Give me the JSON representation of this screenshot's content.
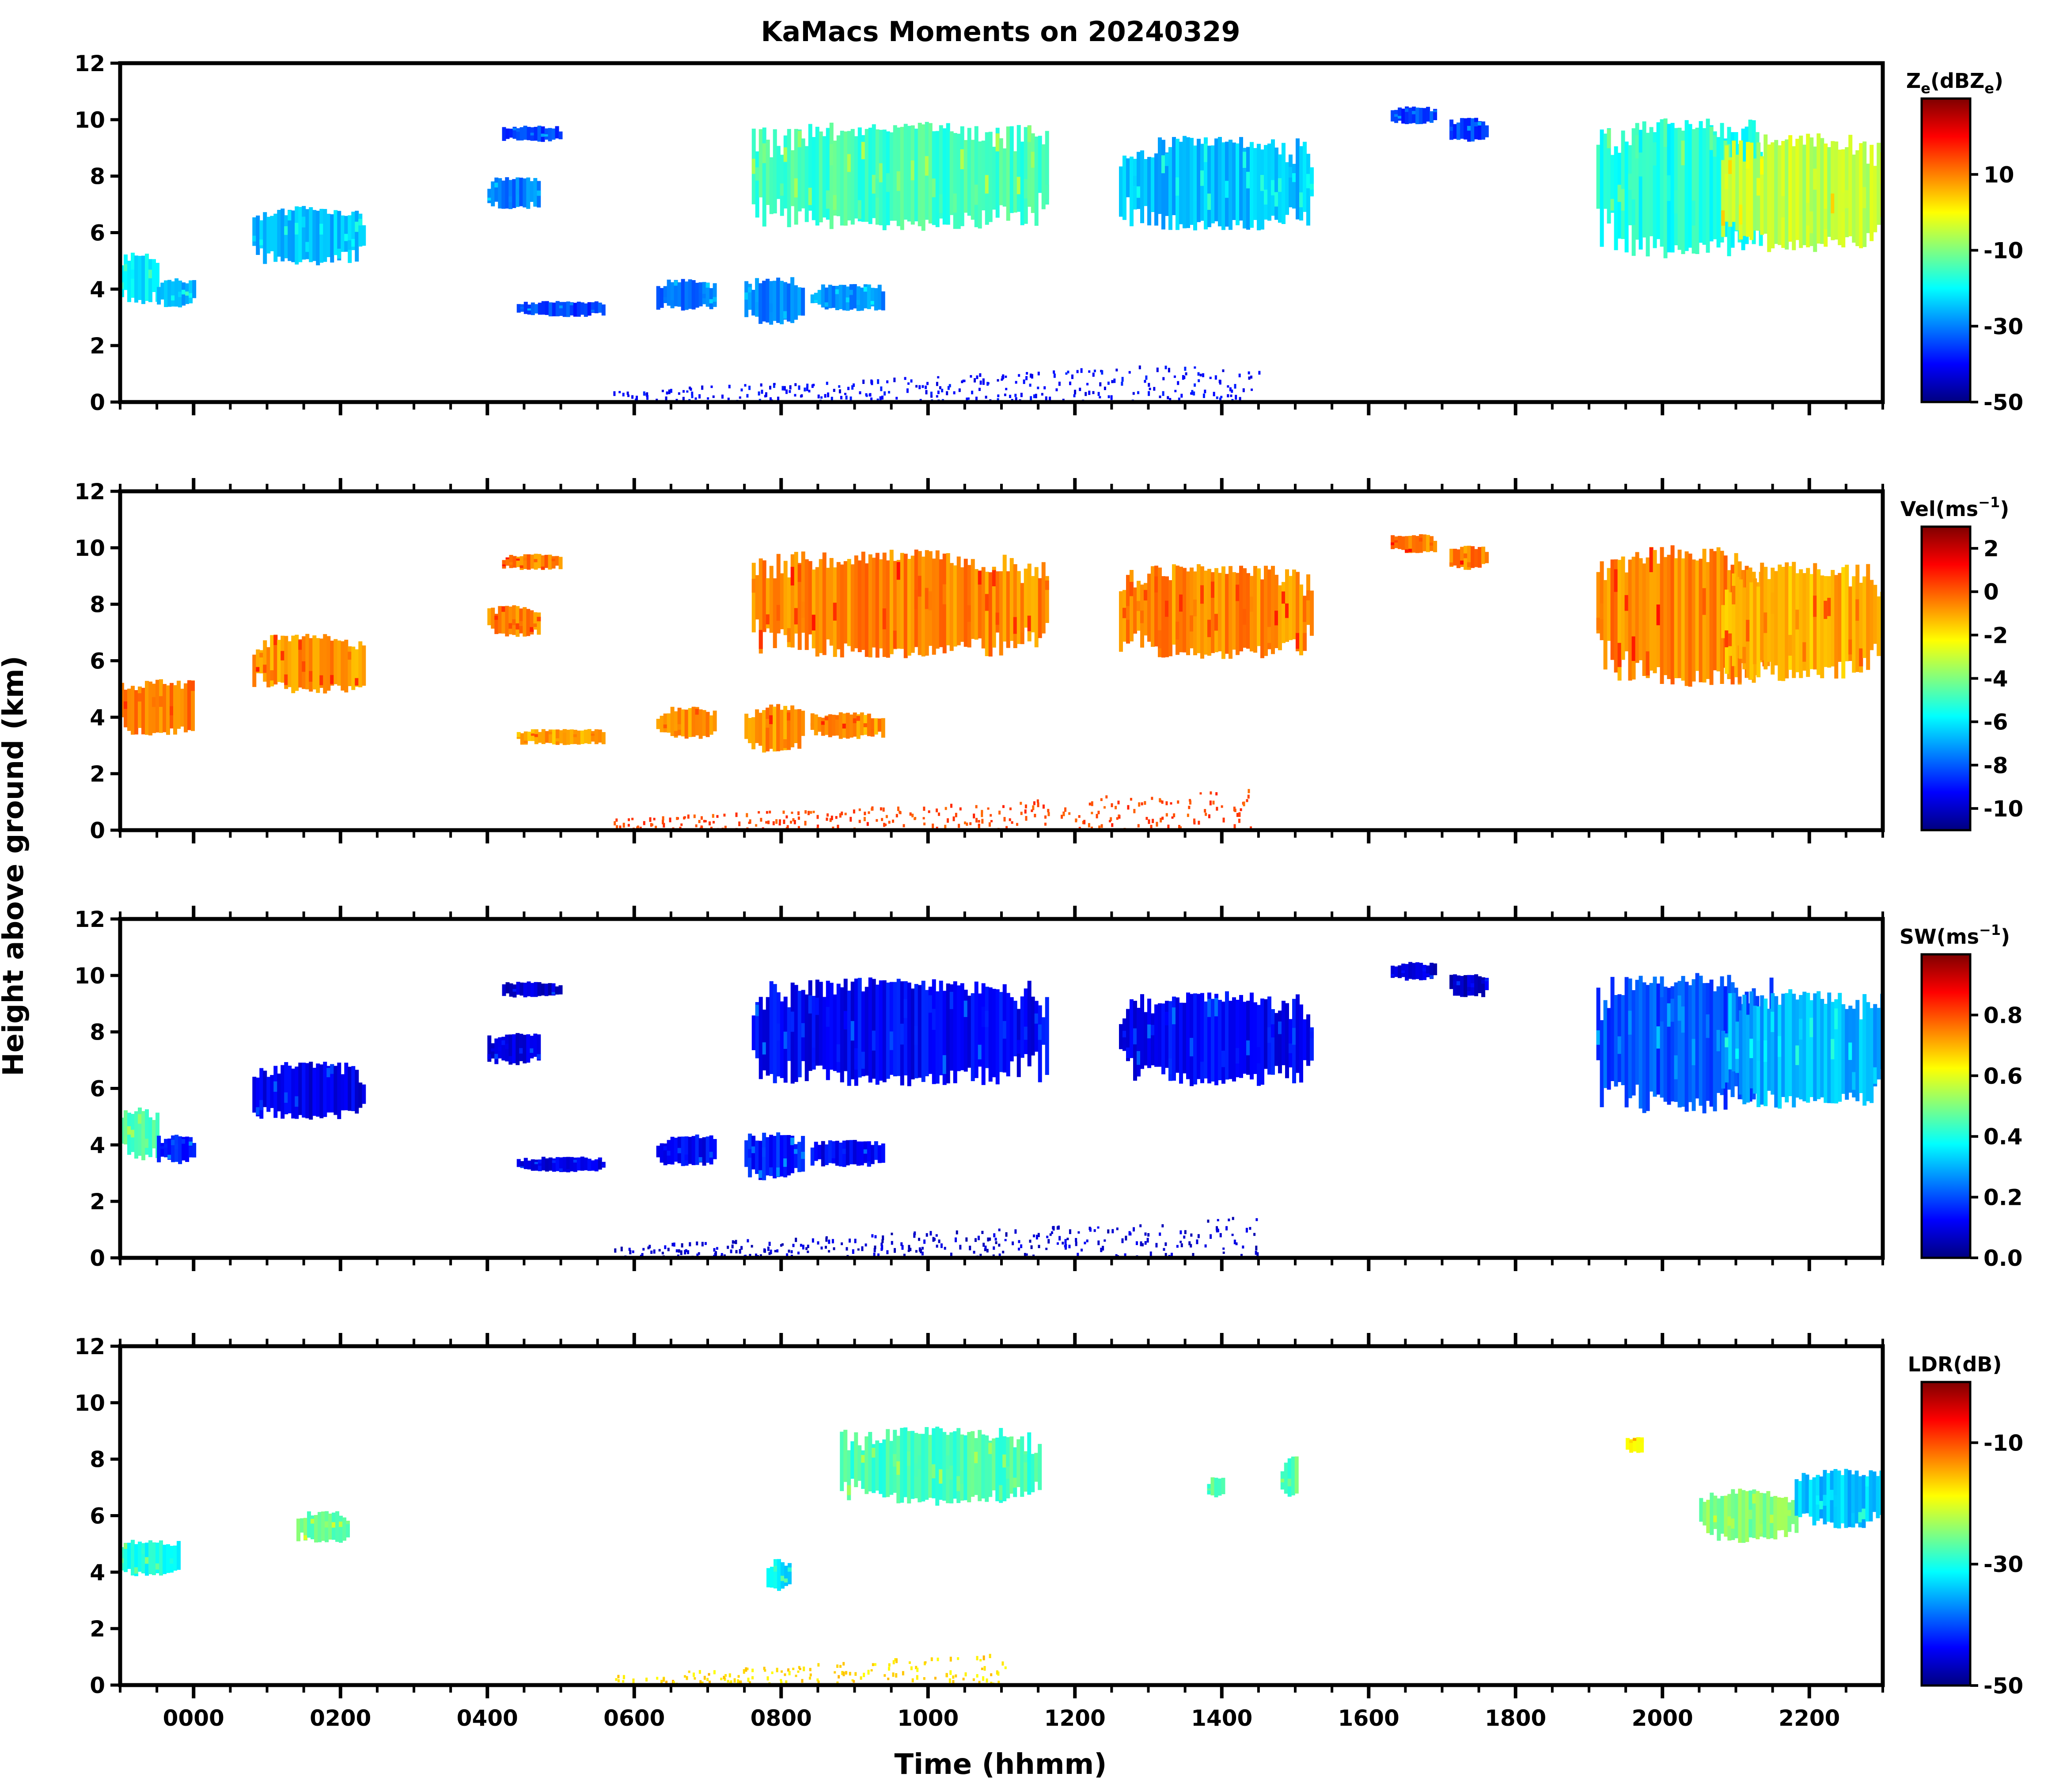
{
  "chart_data": {
    "type": "heatmap",
    "title": "KaMacs Moments on 20240329",
    "xlabel": "Time (hhmm)",
    "ylabel": "Height above ground (km)",
    "x_unit": "hours since 0000 UTC",
    "xlim": [
      -1.0,
      23.0
    ],
    "ylim": [
      0,
      12
    ],
    "x_ticks": [
      0,
      2,
      4,
      6,
      8,
      10,
      12,
      14,
      16,
      18,
      20,
      22
    ],
    "x_tick_labels": [
      "0000",
      "0200",
      "0400",
      "0600",
      "0800",
      "1000",
      "1200",
      "1400",
      "1600",
      "1800",
      "2000",
      "2200"
    ],
    "y_ticks": [
      0,
      2,
      4,
      6,
      8,
      10,
      12
    ],
    "y_tick_labels": [
      "0",
      "2",
      "4",
      "6",
      "8",
      "10",
      "12"
    ],
    "colormap": "jet",
    "colormap_stops": [
      "#00007f",
      "#0000ff",
      "#0080ff",
      "#00ffff",
      "#80ff80",
      "#ffff00",
      "#ff8000",
      "#ff0000",
      "#7f0000"
    ],
    "panels": [
      {
        "id": "ze",
        "colorbar_label_main": "Z",
        "colorbar_label_sub": "e",
        "colorbar_label_unit": "(dBZ",
        "colorbar_label_unit_sub": "e",
        "colorbar_label_close": ")",
        "clim": [
          -50,
          30
        ],
        "colorbar_ticks": [
          10,
          -10,
          -30,
          -50
        ],
        "colorbar_tick_labels": [
          "10",
          "-10",
          "-30",
          "-50"
        ],
        "echoes": [
          {
            "t0": -1.0,
            "t1": -0.5,
            "h0": 3.4,
            "h1": 5.4,
            "value": -22
          },
          {
            "t0": -0.5,
            "t1": 0.0,
            "h0": 3.3,
            "h1": 4.4,
            "value": -25
          },
          {
            "t0": 0.8,
            "t1": 2.3,
            "h0": 4.8,
            "h1": 7.0,
            "value": -25
          },
          {
            "t0": 4.2,
            "t1": 5.0,
            "h0": 9.2,
            "h1": 9.8,
            "value": -35
          },
          {
            "t0": 4.0,
            "t1": 4.7,
            "h0": 6.8,
            "h1": 8.0,
            "value": -30
          },
          {
            "t0": 4.4,
            "t1": 5.6,
            "h0": 3.0,
            "h1": 3.6,
            "value": -35
          },
          {
            "t0": 6.3,
            "t1": 7.1,
            "h0": 3.2,
            "h1": 4.4,
            "value": -32
          },
          {
            "t0": 7.5,
            "t1": 8.3,
            "h0": 2.7,
            "h1": 4.5,
            "value": -30
          },
          {
            "t0": 8.4,
            "t1": 9.4,
            "h0": 3.2,
            "h1": 4.2,
            "value": -28
          },
          {
            "t0": 7.6,
            "t1": 11.6,
            "h0": 6.0,
            "h1": 10.0,
            "value": -15
          },
          {
            "t0": 12.6,
            "t1": 15.2,
            "h0": 6.0,
            "h1": 9.5,
            "value": -25
          },
          {
            "t0": 16.3,
            "t1": 16.9,
            "h0": 9.8,
            "h1": 10.5,
            "value": -35
          },
          {
            "t0": 17.1,
            "t1": 17.6,
            "h0": 9.2,
            "h1": 10.1,
            "value": -35
          },
          {
            "t0": 19.1,
            "t1": 21.5,
            "h0": 5.0,
            "h1": 10.2,
            "value": -18
          },
          {
            "t0": 20.8,
            "t1": 23.0,
            "h0": 5.2,
            "h1": 9.6,
            "value": -5
          },
          {
            "t0": 5.7,
            "t1": 14.5,
            "h0": 0.0,
            "h1": 1.5,
            "value": -40
          }
        ]
      },
      {
        "id": "vel",
        "colorbar_label_main": "Vel(ms",
        "colorbar_label_sup": "−1",
        "colorbar_label_close": ")",
        "clim": [
          -11,
          3
        ],
        "colorbar_ticks": [
          2,
          0,
          -2,
          -4,
          -6,
          -8,
          -10
        ],
        "colorbar_tick_labels": [
          "2",
          "0",
          "-2",
          "-4",
          "-6",
          "-8",
          "-10"
        ],
        "echoes": [
          {
            "t0": -1.0,
            "t1": 0.0,
            "h0": 3.3,
            "h1": 5.4,
            "value": -0.5
          },
          {
            "t0": 0.8,
            "t1": 2.3,
            "h0": 4.8,
            "h1": 7.0,
            "value": -0.8
          },
          {
            "t0": 4.2,
            "t1": 5.0,
            "h0": 9.2,
            "h1": 9.8,
            "value": -0.5
          },
          {
            "t0": 4.0,
            "t1": 4.7,
            "h0": 6.8,
            "h1": 8.0,
            "value": -0.6
          },
          {
            "t0": 4.4,
            "t1": 5.6,
            "h0": 3.0,
            "h1": 3.6,
            "value": -1.0
          },
          {
            "t0": 6.3,
            "t1": 7.1,
            "h0": 3.2,
            "h1": 4.4,
            "value": -0.7
          },
          {
            "t0": 7.5,
            "t1": 8.3,
            "h0": 2.7,
            "h1": 4.5,
            "value": -0.8
          },
          {
            "t0": 8.4,
            "t1": 9.4,
            "h0": 3.2,
            "h1": 4.2,
            "value": -0.8
          },
          {
            "t0": 7.6,
            "t1": 11.6,
            "h0": 6.0,
            "h1": 10.0,
            "value": -0.6
          },
          {
            "t0": 12.6,
            "t1": 15.2,
            "h0": 6.0,
            "h1": 9.5,
            "value": -0.7
          },
          {
            "t0": 16.3,
            "t1": 16.9,
            "h0": 9.8,
            "h1": 10.5,
            "value": -0.5
          },
          {
            "t0": 17.1,
            "t1": 17.6,
            "h0": 9.2,
            "h1": 10.1,
            "value": -0.5
          },
          {
            "t0": 19.1,
            "t1": 21.5,
            "h0": 5.0,
            "h1": 10.2,
            "value": -0.6
          },
          {
            "t0": 20.8,
            "t1": 23.0,
            "h0": 5.2,
            "h1": 9.6,
            "value": -1.2
          },
          {
            "t0": 5.7,
            "t1": 14.5,
            "h0": 0.0,
            "h1": 1.5,
            "value": 0.3
          }
        ]
      },
      {
        "id": "sw",
        "colorbar_label_main": "SW(ms",
        "colorbar_label_sup": "−1",
        "colorbar_label_close": ")",
        "clim": [
          0.0,
          1.0
        ],
        "colorbar_ticks": [
          0.8,
          0.6,
          0.4,
          0.2,
          0.0
        ],
        "colorbar_tick_labels": [
          "0.8",
          "0.6",
          "0.4",
          "0.2",
          "0.0"
        ],
        "echoes": [
          {
            "t0": -1.0,
            "t1": -0.5,
            "h0": 3.4,
            "h1": 5.4,
            "value": 0.45
          },
          {
            "t0": -0.5,
            "t1": 0.0,
            "h0": 3.3,
            "h1": 4.4,
            "value": 0.15
          },
          {
            "t0": 0.8,
            "t1": 2.3,
            "h0": 4.8,
            "h1": 7.0,
            "value": 0.1
          },
          {
            "t0": 4.2,
            "t1": 5.0,
            "h0": 9.2,
            "h1": 9.8,
            "value": 0.08
          },
          {
            "t0": 4.0,
            "t1": 4.7,
            "h0": 6.8,
            "h1": 8.0,
            "value": 0.1
          },
          {
            "t0": 4.4,
            "t1": 5.6,
            "h0": 3.0,
            "h1": 3.6,
            "value": 0.1
          },
          {
            "t0": 6.3,
            "t1": 7.1,
            "h0": 3.2,
            "h1": 4.4,
            "value": 0.12
          },
          {
            "t0": 7.5,
            "t1": 8.3,
            "h0": 2.7,
            "h1": 4.5,
            "value": 0.15
          },
          {
            "t0": 8.4,
            "t1": 9.4,
            "h0": 3.2,
            "h1": 4.2,
            "value": 0.12
          },
          {
            "t0": 7.6,
            "t1": 11.6,
            "h0": 6.0,
            "h1": 10.0,
            "value": 0.12
          },
          {
            "t0": 12.6,
            "t1": 15.2,
            "h0": 6.0,
            "h1": 9.5,
            "value": 0.12
          },
          {
            "t0": 16.3,
            "t1": 16.9,
            "h0": 9.8,
            "h1": 10.5,
            "value": 0.08
          },
          {
            "t0": 17.1,
            "t1": 17.6,
            "h0": 9.2,
            "h1": 10.1,
            "value": 0.08
          },
          {
            "t0": 19.1,
            "t1": 21.5,
            "h0": 5.0,
            "h1": 10.2,
            "value": 0.2
          },
          {
            "t0": 20.8,
            "t1": 23.0,
            "h0": 5.2,
            "h1": 9.6,
            "value": 0.3
          },
          {
            "t0": 5.7,
            "t1": 14.5,
            "h0": 0.0,
            "h1": 1.5,
            "value": 0.08
          }
        ]
      },
      {
        "id": "ldr",
        "colorbar_label_main": "LDR(dB)",
        "clim": [
          -50,
          0
        ],
        "colorbar_ticks": [
          -10,
          -30,
          -50
        ],
        "colorbar_tick_labels": [
          "-10",
          "-30",
          "-50"
        ],
        "echoes": [
          {
            "t0": -1.0,
            "t1": -0.2,
            "h0": 3.8,
            "h1": 5.2,
            "value": -30
          },
          {
            "t0": 1.4,
            "t1": 2.1,
            "h0": 5.0,
            "h1": 6.2,
            "value": -26
          },
          {
            "t0": 7.8,
            "t1": 8.1,
            "h0": 3.3,
            "h1": 4.5,
            "value": -32
          },
          {
            "t0": 8.8,
            "t1": 11.5,
            "h0": 6.3,
            "h1": 9.2,
            "value": -28
          },
          {
            "t0": 13.8,
            "t1": 14.0,
            "h0": 6.6,
            "h1": 7.4,
            "value": -27
          },
          {
            "t0": 14.8,
            "t1": 15.0,
            "h0": 6.6,
            "h1": 8.2,
            "value": -27
          },
          {
            "t0": 20.5,
            "t1": 21.8,
            "h0": 5.0,
            "h1": 7.0,
            "value": -25
          },
          {
            "t0": 21.8,
            "t1": 23.0,
            "h0": 5.5,
            "h1": 7.7,
            "value": -34
          },
          {
            "t0": 19.5,
            "t1": 19.7,
            "h0": 8.2,
            "h1": 8.8,
            "value": -20
          },
          {
            "t0": 5.7,
            "t1": 11.0,
            "h0": 0.0,
            "h1": 1.2,
            "value": -17
          }
        ]
      }
    ]
  }
}
